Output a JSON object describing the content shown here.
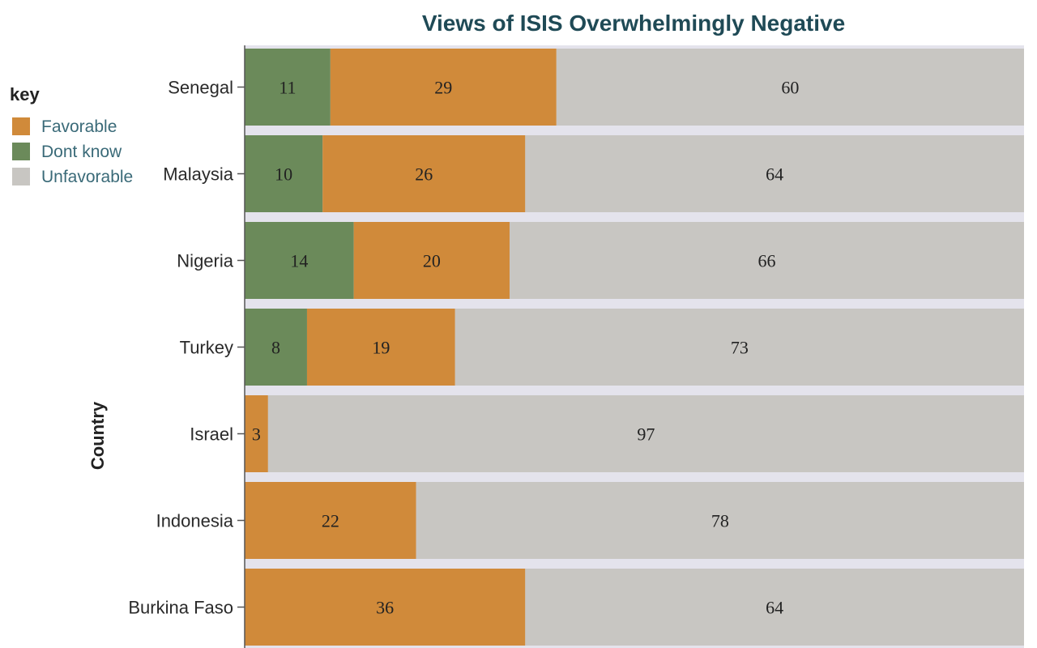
{
  "chart_data": {
    "type": "bar",
    "orientation": "horizontal",
    "stacked": true,
    "title": "Views of ISIS Overwhelmingly Negative",
    "xlabel": "",
    "ylabel": "Country",
    "categories": [
      "Senegal",
      "Malaysia",
      "Nigeria",
      "Turkey",
      "Israel",
      "Indonesia",
      "Burkina Faso"
    ],
    "series": [
      {
        "name": "Dont know",
        "values": [
          11,
          10,
          14,
          8,
          null,
          null,
          null
        ],
        "color": "#6b8a5a"
      },
      {
        "name": "Favorable",
        "values": [
          29,
          26,
          20,
          19,
          3,
          22,
          36
        ],
        "color": "#d08a3a"
      },
      {
        "name": "Unfavorable",
        "values": [
          60,
          64,
          66,
          73,
          97,
          78,
          64
        ],
        "color": "#c8c6c2"
      }
    ],
    "xlim": [
      0,
      100
    ],
    "legend": {
      "title": "key",
      "placement": "top-left",
      "order": [
        "Favorable",
        "Dont know",
        "Unfavorable"
      ]
    },
    "grid": false
  }
}
